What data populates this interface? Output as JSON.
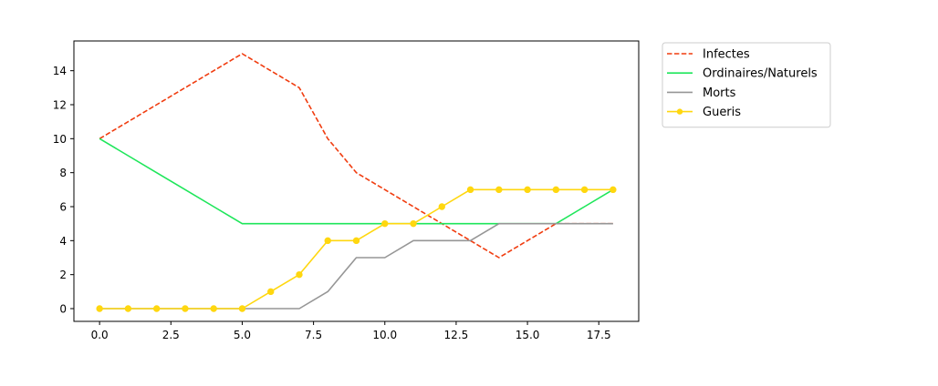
{
  "chart_data": {
    "type": "line",
    "title": "",
    "xlabel": "",
    "ylabel": "",
    "xlim": [
      -0.9,
      18.9
    ],
    "ylim": [
      -0.75,
      15.75
    ],
    "x_ticks": [
      {
        "value": 0,
        "label": "0.0"
      },
      {
        "value": 2.5,
        "label": "2.5"
      },
      {
        "value": 5,
        "label": "5.0"
      },
      {
        "value": 7.5,
        "label": "7.5"
      },
      {
        "value": 10,
        "label": "10.0"
      },
      {
        "value": 12.5,
        "label": "12.5"
      },
      {
        "value": 15,
        "label": "15.0"
      },
      {
        "value": 17.5,
        "label": "17.5"
      }
    ],
    "y_ticks": [
      {
        "value": 0,
        "label": "0"
      },
      {
        "value": 2,
        "label": "2"
      },
      {
        "value": 4,
        "label": "4"
      },
      {
        "value": 6,
        "label": "6"
      },
      {
        "value": 8,
        "label": "8"
      },
      {
        "value": 10,
        "label": "10"
      },
      {
        "value": 12,
        "label": "12"
      },
      {
        "value": 14,
        "label": "14"
      }
    ],
    "grid": false,
    "legend_position": "outside-top-right",
    "x": [
      0,
      1,
      2,
      3,
      4,
      5,
      6,
      7,
      8,
      9,
      10,
      11,
      12,
      13,
      14,
      15,
      16,
      17,
      18
    ],
    "series": [
      {
        "name": "Infectes",
        "color": "#f03c0f",
        "style": "dashed",
        "marker": "none",
        "values": [
          10,
          11,
          12,
          13,
          14,
          15,
          14,
          13,
          10,
          8,
          7,
          6,
          5,
          4,
          3,
          4,
          5,
          5,
          5
        ]
      },
      {
        "name": "Ordinaires/Naturels",
        "color": "#1ee65a",
        "style": "solid",
        "marker": "none",
        "values": [
          10,
          9,
          8,
          7,
          6,
          5,
          5,
          5,
          5,
          5,
          5,
          5,
          5,
          5,
          5,
          5,
          5,
          6,
          7
        ]
      },
      {
        "name": "Morts",
        "color": "#969696",
        "style": "solid",
        "marker": "none",
        "values": [
          0,
          0,
          0,
          0,
          0,
          0,
          0,
          0,
          1,
          3,
          3,
          4,
          4,
          4,
          5,
          5,
          5,
          5,
          5
        ]
      },
      {
        "name": "Gueris",
        "color": "#ffd70f",
        "style": "solid",
        "marker": "circle",
        "values": [
          0,
          0,
          0,
          0,
          0,
          0,
          1,
          2,
          4,
          4,
          5,
          5,
          6,
          7,
          7,
          7,
          7,
          7,
          7
        ]
      }
    ]
  }
}
